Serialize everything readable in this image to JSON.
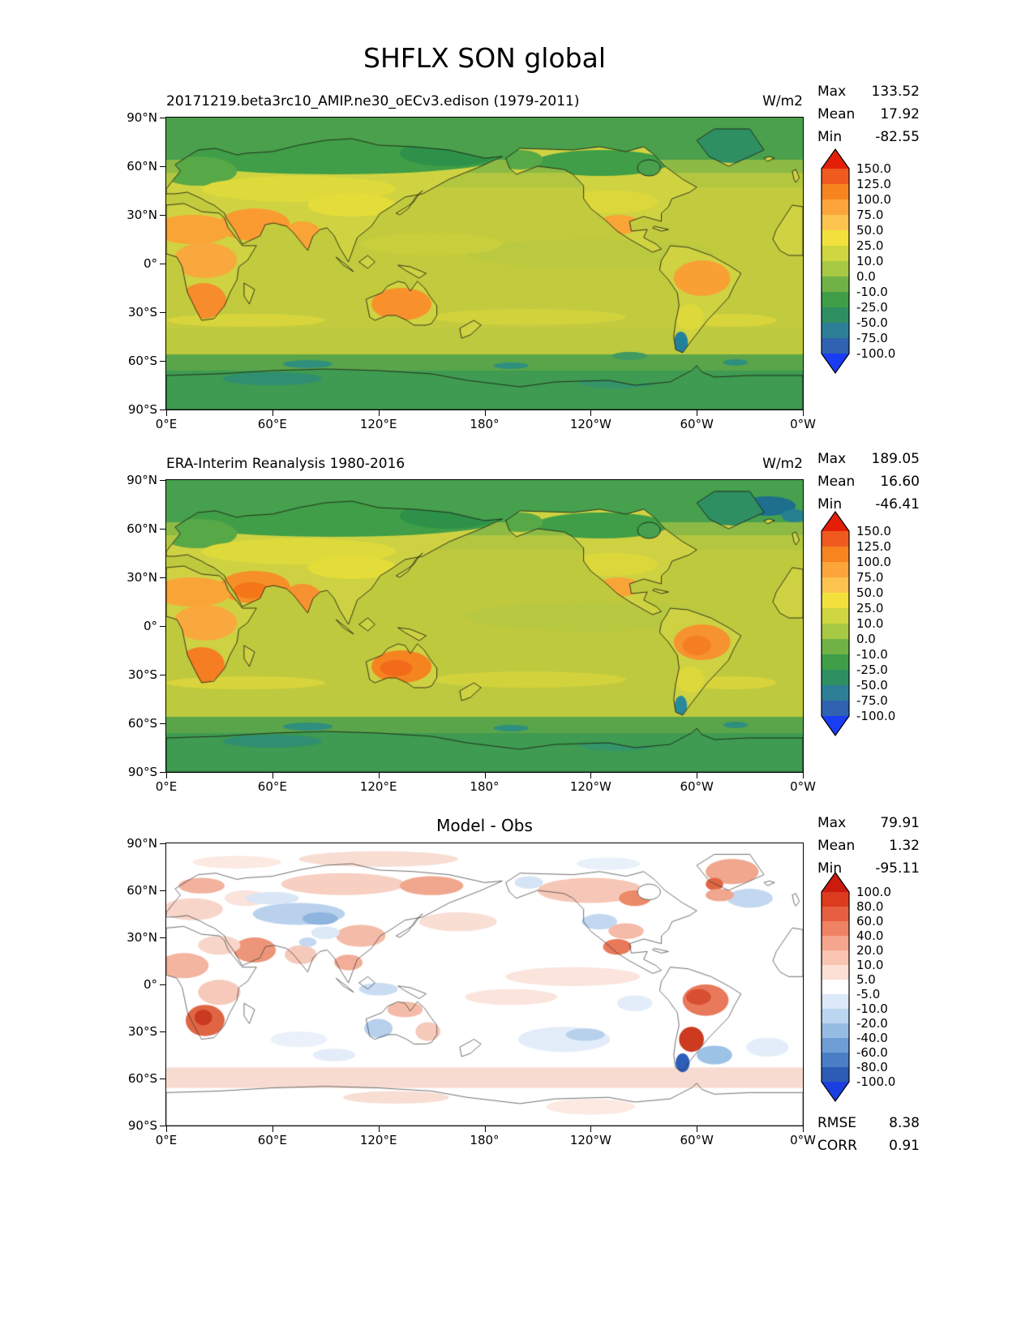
{
  "title": "SHFLX SON global",
  "axis": {
    "lat_ticks": [
      "90°N",
      "60°N",
      "30°N",
      "0°",
      "30°S",
      "60°S",
      "90°S"
    ],
    "lon_ticks": [
      "0°E",
      "60°E",
      "120°E",
      "180°",
      "120°W",
      "60°W",
      "0°W"
    ]
  },
  "panels": [
    {
      "title": "20171219.beta3rc10_AMIP.ne30_oECv3.edison (1979-2011)",
      "units": "W/m2",
      "stats": [
        {
          "label": "Max",
          "value": "133.52"
        },
        {
          "label": "Mean",
          "value": "17.92"
        },
        {
          "label": "Min",
          "value": "-82.55"
        }
      ],
      "colorbar": {
        "tick_labels": [
          "150.0",
          "125.0",
          "100.0",
          "75.0",
          "50.0",
          "25.0",
          "10.0",
          "0.0",
          "-10.0",
          "-25.0",
          "-50.0",
          "-75.0",
          "-100.0"
        ],
        "segment_colors": [
          "#ef5a1f",
          "#f8841f",
          "#fba53a",
          "#fdc34f",
          "#f2e13d",
          "#cfd63f",
          "#a8c943",
          "#70b246",
          "#3f9e47",
          "#2e8f63",
          "#2d7f95",
          "#2f62b0"
        ],
        "extend_colors": {
          "over": "#e32007",
          "under": "#1b3cf5"
        }
      }
    },
    {
      "title": "ERA-Interim Reanalysis 1980-2016",
      "units": "W/m2",
      "stats": [
        {
          "label": "Max",
          "value": "189.05"
        },
        {
          "label": "Mean",
          "value": "16.60"
        },
        {
          "label": "Min",
          "value": "-46.41"
        }
      ],
      "colorbar": {
        "tick_labels": [
          "150.0",
          "125.0",
          "100.0",
          "75.0",
          "50.0",
          "25.0",
          "10.0",
          "0.0",
          "-10.0",
          "-25.0",
          "-50.0",
          "-75.0",
          "-100.0"
        ],
        "segment_colors": [
          "#ef5a1f",
          "#f8841f",
          "#fba53a",
          "#fdc34f",
          "#f2e13d",
          "#cfd63f",
          "#a8c943",
          "#70b246",
          "#3f9e47",
          "#2e8f63",
          "#2d7f95",
          "#2f62b0"
        ],
        "extend_colors": {
          "over": "#e32007",
          "under": "#1b3cf5"
        }
      }
    },
    {
      "title": "Model - Obs",
      "stats": [
        {
          "label": "Max",
          "value": "79.91"
        },
        {
          "label": "Mean",
          "value": "1.32"
        },
        {
          "label": "Min",
          "value": "-95.11"
        }
      ],
      "extras": [
        {
          "label": "RMSE",
          "value": "8.38"
        },
        {
          "label": "CORR",
          "value": "0.91"
        }
      ],
      "colorbar": {
        "tick_labels": [
          "100.0",
          "80.0",
          "60.0",
          "40.0",
          "20.0",
          "10.0",
          "5.0",
          "-5.0",
          "-10.0",
          "-20.0",
          "-40.0",
          "-60.0",
          "-80.0",
          "-100.0"
        ],
        "segment_colors": [
          "#dc3b1e",
          "#e65f40",
          "#ee8263",
          "#f4a58c",
          "#f9c4b2",
          "#fcdfd5",
          "#ffffff",
          "#dce9f8",
          "#bcd5f0",
          "#97bce4",
          "#6f9ed6",
          "#4a7ec6",
          "#2c5cb4"
        ],
        "extend_colors": {
          "over": "#cb1a0e",
          "under": "#1a3ee0"
        }
      }
    }
  ],
  "chart_data": [
    {
      "type": "heatmap",
      "panel": "model",
      "variable": "SHFLX",
      "season": "SON",
      "domain": "global",
      "title": "20171219.beta3rc10_AMIP.ne30_oECv3.edison (1979-2011)",
      "units": "W/m2",
      "projection": "equirectangular",
      "lon_ticks": [
        "0°E",
        "60°E",
        "120°E",
        "180°",
        "120°W",
        "60°W",
        "0°W"
      ],
      "lat_ticks": [
        "90°N",
        "60°N",
        "30°N",
        "0°",
        "30°S",
        "60°S",
        "90°S"
      ],
      "contour_levels": [
        -100,
        -75,
        -50,
        -25,
        -10,
        0,
        10,
        25,
        50,
        75,
        100,
        125,
        150
      ],
      "stats": {
        "max": 133.52,
        "mean": 17.92,
        "min": -82.55
      }
    },
    {
      "type": "heatmap",
      "panel": "observation",
      "variable": "SHFLX",
      "season": "SON",
      "domain": "global",
      "title": "ERA-Interim Reanalysis 1980-2016",
      "units": "W/m2",
      "projection": "equirectangular",
      "contour_levels": [
        -100,
        -75,
        -50,
        -25,
        -10,
        0,
        10,
        25,
        50,
        75,
        100,
        125,
        150
      ],
      "stats": {
        "max": 189.05,
        "mean": 16.6,
        "min": -46.41
      }
    },
    {
      "type": "heatmap",
      "panel": "difference",
      "variable": "SHFLX",
      "season": "SON",
      "domain": "global",
      "title": "Model - Obs",
      "projection": "equirectangular",
      "contour_levels": [
        -100,
        -80,
        -60,
        -40,
        -20,
        -10,
        -5,
        5,
        10,
        20,
        40,
        60,
        80,
        100
      ],
      "stats": {
        "max": 79.91,
        "mean": 1.32,
        "min": -95.11,
        "rmse": 8.38,
        "corr": 0.91
      }
    }
  ]
}
